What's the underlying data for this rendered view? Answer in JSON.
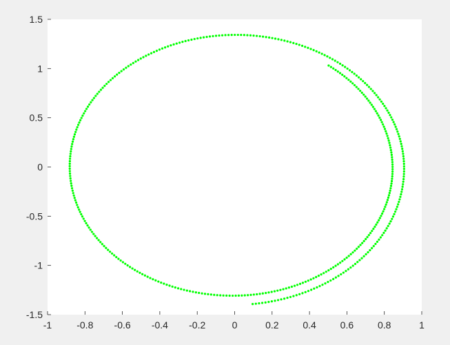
{
  "chart_data": {
    "type": "scatter",
    "xlim": [
      -1,
      1
    ],
    "ylim": [
      -1.5,
      1.5
    ],
    "xticks": [
      "-1",
      "-0.8",
      "-0.6",
      "-0.4",
      "-0.2",
      "0",
      "0.2",
      "0.4",
      "0.6",
      "0.8",
      "1"
    ],
    "yticks": [
      "1.5",
      "1",
      "0.5",
      "0",
      "-0.5",
      "-1",
      "-1.5"
    ],
    "xtick_values": [
      -1,
      -0.8,
      -0.6,
      -0.4,
      -0.2,
      0,
      0.2,
      0.4,
      0.6,
      0.8,
      1
    ],
    "ytick_values": [
      1.5,
      1,
      0.5,
      0,
      -0.5,
      -1,
      -1.5
    ],
    "grid": false,
    "series": [
      {
        "color": "#00ff00",
        "marker": "dot",
        "description_points": [
          {
            "x": 0.5,
            "y": 1.0
          },
          {
            "x": 0.85,
            "y": 0.0
          },
          {
            "x": 0.0,
            "y": -1.28
          },
          {
            "x": -0.87,
            "y": 0.0
          },
          {
            "x": 0.0,
            "y": 1.31
          },
          {
            "x": 0.92,
            "y": 0.0
          },
          {
            "x": 0.05,
            "y": -1.4
          }
        ]
      }
    ]
  }
}
